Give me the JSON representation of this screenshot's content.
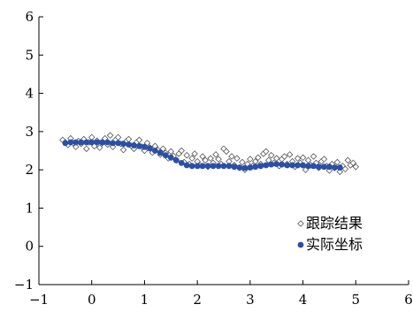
{
  "chart_data": {
    "type": "scatter",
    "title": "",
    "xlabel": "",
    "ylabel": "",
    "xlim": [
      -1,
      6
    ],
    "ylim": [
      -1,
      6
    ],
    "x_ticks": [
      -1,
      0,
      1,
      2,
      3,
      4,
      5,
      6
    ],
    "y_ticks": [
      -1,
      0,
      1,
      2,
      3,
      4,
      5,
      6
    ],
    "x_tick_labels": [
      "−1",
      "0",
      "1",
      "2",
      "3",
      "4",
      "5",
      "6"
    ],
    "y_tick_labels": [
      "−1",
      "0",
      "1",
      "2",
      "3",
      "4",
      "5",
      "6"
    ],
    "grid": false,
    "legend_position": "bottom-right",
    "series": [
      {
        "name": "跟踪结果",
        "marker": "open-diamond",
        "color": "#555555",
        "points": [
          [
            -0.55,
            2.78
          ],
          [
            -0.5,
            2.72
          ],
          [
            -0.45,
            2.65
          ],
          [
            -0.4,
            2.82
          ],
          [
            -0.35,
            2.7
          ],
          [
            -0.3,
            2.6
          ],
          [
            -0.25,
            2.75
          ],
          [
            -0.2,
            2.68
          ],
          [
            -0.15,
            2.8
          ],
          [
            -0.1,
            2.55
          ],
          [
            -0.05,
            2.72
          ],
          [
            0.0,
            2.85
          ],
          [
            0.05,
            2.62
          ],
          [
            0.1,
            2.76
          ],
          [
            0.15,
            2.58
          ],
          [
            0.2,
            2.7
          ],
          [
            0.25,
            2.82
          ],
          [
            0.3,
            2.66
          ],
          [
            0.35,
            2.9
          ],
          [
            0.4,
            2.6
          ],
          [
            0.45,
            2.78
          ],
          [
            0.5,
            2.85
          ],
          [
            0.55,
            2.68
          ],
          [
            0.6,
            2.52
          ],
          [
            0.65,
            2.74
          ],
          [
            0.7,
            2.8
          ],
          [
            0.75,
            2.62
          ],
          [
            0.8,
            2.55
          ],
          [
            0.85,
            2.72
          ],
          [
            0.9,
            2.78
          ],
          [
            0.95,
            2.6
          ],
          [
            1.0,
            2.5
          ],
          [
            1.05,
            2.7
          ],
          [
            1.1,
            2.58
          ],
          [
            1.15,
            2.45
          ],
          [
            1.2,
            2.62
          ],
          [
            1.25,
            2.52
          ],
          [
            1.3,
            2.4
          ],
          [
            1.35,
            2.55
          ],
          [
            1.4,
            2.44
          ],
          [
            1.45,
            2.3
          ],
          [
            1.5,
            2.48
          ],
          [
            1.55,
            2.36
          ],
          [
            1.6,
            2.25
          ],
          [
            1.65,
            2.42
          ],
          [
            1.7,
            2.5
          ],
          [
            1.75,
            2.2
          ],
          [
            1.8,
            2.38
          ],
          [
            1.85,
            2.15
          ],
          [
            1.9,
            2.3
          ],
          [
            1.95,
            2.42
          ],
          [
            2.0,
            2.22
          ],
          [
            2.05,
            2.12
          ],
          [
            2.1,
            2.35
          ],
          [
            2.15,
            2.25
          ],
          [
            2.2,
            2.08
          ],
          [
            2.25,
            2.3
          ],
          [
            2.3,
            2.18
          ],
          [
            2.35,
            2.4
          ],
          [
            2.4,
            2.28
          ],
          [
            2.45,
            2.15
          ],
          [
            2.5,
            2.55
          ],
          [
            2.55,
            2.48
          ],
          [
            2.6,
            2.22
          ],
          [
            2.65,
            2.35
          ],
          [
            2.7,
            2.12
          ],
          [
            2.75,
            2.3
          ],
          [
            2.8,
            2.05
          ],
          [
            2.85,
            2.2
          ],
          [
            2.9,
            2.0
          ],
          [
            2.95,
            2.15
          ],
          [
            3.0,
            2.28
          ],
          [
            3.05,
            2.1
          ],
          [
            3.1,
            2.22
          ],
          [
            3.15,
            2.32
          ],
          [
            3.2,
            2.15
          ],
          [
            3.25,
            2.42
          ],
          [
            3.3,
            2.48
          ],
          [
            3.35,
            2.25
          ],
          [
            3.4,
            2.38
          ],
          [
            3.45,
            2.18
          ],
          [
            3.5,
            2.3
          ],
          [
            3.55,
            2.1
          ],
          [
            3.6,
            2.28
          ],
          [
            3.65,
            2.35
          ],
          [
            3.7,
            2.15
          ],
          [
            3.75,
            2.4
          ],
          [
            3.8,
            2.22
          ],
          [
            3.85,
            2.08
          ],
          [
            3.9,
            2.3
          ],
          [
            3.95,
            2.18
          ],
          [
            4.0,
            2.32
          ],
          [
            4.05,
            2.0
          ],
          [
            4.1,
            2.25
          ],
          [
            4.15,
            2.12
          ],
          [
            4.2,
            2.35
          ],
          [
            4.25,
            2.18
          ],
          [
            4.3,
            2.05
          ],
          [
            4.35,
            2.22
          ],
          [
            4.4,
            2.28
          ],
          [
            4.45,
            2.1
          ],
          [
            4.5,
            1.98
          ],
          [
            4.55,
            2.15
          ],
          [
            4.6,
            2.05
          ],
          [
            4.65,
            2.2
          ],
          [
            4.7,
            1.95
          ],
          [
            4.75,
            2.1
          ],
          [
            4.8,
            2.02
          ],
          [
            4.85,
            2.25
          ],
          [
            4.9,
            2.12
          ],
          [
            4.95,
            2.18
          ],
          [
            5.0,
            2.08
          ]
        ]
      },
      {
        "name": "实际坐标",
        "marker": "filled-circle",
        "color": "#2a4fa8",
        "points": [
          [
            -0.5,
            2.7
          ],
          [
            -0.4,
            2.72
          ],
          [
            -0.3,
            2.72
          ],
          [
            -0.2,
            2.72
          ],
          [
            -0.1,
            2.72
          ],
          [
            0.0,
            2.72
          ],
          [
            0.1,
            2.72
          ],
          [
            0.2,
            2.72
          ],
          [
            0.3,
            2.72
          ],
          [
            0.4,
            2.7
          ],
          [
            0.5,
            2.7
          ],
          [
            0.6,
            2.68
          ],
          [
            0.7,
            2.66
          ],
          [
            0.8,
            2.64
          ],
          [
            0.9,
            2.62
          ],
          [
            1.0,
            2.6
          ],
          [
            1.1,
            2.56
          ],
          [
            1.2,
            2.5
          ],
          [
            1.3,
            2.45
          ],
          [
            1.4,
            2.38
          ],
          [
            1.5,
            2.32
          ],
          [
            1.6,
            2.25
          ],
          [
            1.7,
            2.18
          ],
          [
            1.8,
            2.12
          ],
          [
            1.9,
            2.1
          ],
          [
            2.0,
            2.1
          ],
          [
            2.1,
            2.1
          ],
          [
            2.2,
            2.1
          ],
          [
            2.3,
            2.1
          ],
          [
            2.4,
            2.1
          ],
          [
            2.5,
            2.1
          ],
          [
            2.6,
            2.1
          ],
          [
            2.7,
            2.08
          ],
          [
            2.8,
            2.06
          ],
          [
            2.9,
            2.05
          ],
          [
            3.0,
            2.06
          ],
          [
            3.1,
            2.08
          ],
          [
            3.2,
            2.1
          ],
          [
            3.3,
            2.12
          ],
          [
            3.4,
            2.14
          ],
          [
            3.5,
            2.15
          ],
          [
            3.6,
            2.14
          ],
          [
            3.7,
            2.12
          ],
          [
            3.8,
            2.12
          ],
          [
            3.9,
            2.12
          ],
          [
            4.0,
            2.12
          ],
          [
            4.1,
            2.1
          ],
          [
            4.2,
            2.1
          ],
          [
            4.3,
            2.08
          ],
          [
            4.4,
            2.08
          ],
          [
            4.5,
            2.08
          ],
          [
            4.6,
            2.06
          ],
          [
            4.7,
            2.06
          ]
        ]
      }
    ]
  }
}
